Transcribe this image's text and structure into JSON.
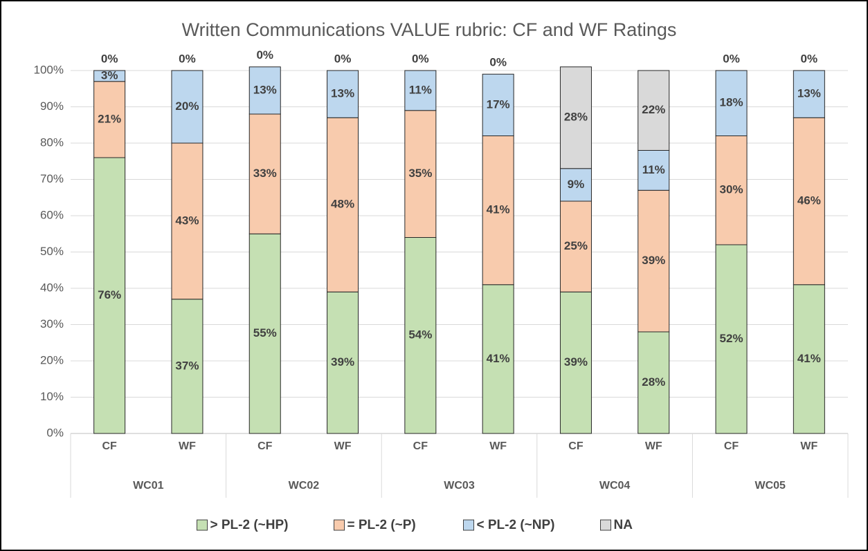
{
  "chart_data": {
    "type": "stacked_bar",
    "title": "Written Communications VALUE rubric:  CF and WF Ratings",
    "categories": [
      "CF",
      "WF",
      "CF",
      "WF",
      "CF",
      "WF",
      "CF",
      "WF",
      "CF",
      "WF"
    ],
    "groups": [
      "WC01",
      "WC02",
      "WC03",
      "WC04",
      "WC05"
    ],
    "series": [
      {
        "name": "> PL-2 (~HP)",
        "color": "#c5e0b3",
        "values": [
          76,
          37,
          55,
          39,
          54,
          41,
          39,
          28,
          52,
          41
        ],
        "value_labels": [
          "76%",
          "37%",
          "55%",
          "39%",
          "54%",
          "41%",
          "39%",
          "28%",
          "52%",
          "41%"
        ]
      },
      {
        "name": "= PL-2 (~P)",
        "color": "#f8cbad",
        "values": [
          21,
          43,
          33,
          48,
          35,
          41,
          25,
          39,
          30,
          46
        ],
        "value_labels": [
          "21%",
          "43%",
          "33%",
          "48%",
          "35%",
          "41%",
          "25%",
          "39%",
          "30%",
          "46%"
        ]
      },
      {
        "name": "< PL-2 (~NP)",
        "color": "#bdd7ee",
        "values": [
          3,
          20,
          13,
          13,
          11,
          17,
          9,
          11,
          18,
          13
        ],
        "value_labels": [
          "3%",
          "20%",
          "13%",
          "13%",
          "11%",
          "17%",
          "9%",
          "11%",
          "18%",
          "13%"
        ]
      },
      {
        "name": "NA",
        "color": "#d9d9d9",
        "values": [
          0,
          0,
          0,
          0,
          0,
          0,
          28,
          22,
          0,
          0
        ],
        "value_labels": [
          "0%",
          "0%",
          "0%",
          "0%",
          "0%",
          "0%",
          "28%",
          "22%",
          "0%",
          "0%"
        ]
      }
    ],
    "ylim": [
      0,
      100
    ],
    "yticks": [
      {
        "value": 0,
        "label": "0%"
      },
      {
        "value": 10,
        "label": "10%"
      },
      {
        "value": 20,
        "label": "20%"
      },
      {
        "value": 30,
        "label": "30%"
      },
      {
        "value": 40,
        "label": "40%"
      },
      {
        "value": 50,
        "label": "50%"
      },
      {
        "value": 60,
        "label": "60%"
      },
      {
        "value": 70,
        "label": "70%"
      },
      {
        "value": 80,
        "label": "80%"
      },
      {
        "value": 90,
        "label": "90%"
      },
      {
        "value": 100,
        "label": "100%"
      }
    ],
    "grid": true,
    "legend": "bottom"
  }
}
